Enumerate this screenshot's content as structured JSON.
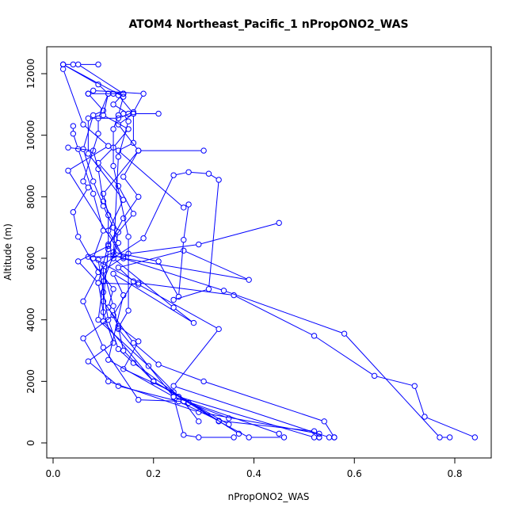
{
  "chart_data": {
    "type": "line",
    "title": "ATOM4 Northeast_Pacific_1 nPropONO2_WAS",
    "xlabel": "nPropONO2_WAS",
    "ylabel": "Altitude (m)",
    "xlim": [
      0,
      0.85
    ],
    "ylim": [
      0,
      12400
    ],
    "x_ticks": [
      0.0,
      0.2,
      0.4,
      0.6,
      0.8
    ],
    "x_tick_labels": [
      "0.0",
      "0.2",
      "0.4",
      "0.6",
      "0.8"
    ],
    "y_ticks": [
      0,
      2000,
      4000,
      6000,
      8000,
      10000,
      12000
    ],
    "y_tick_labels": [
      "0",
      "2000",
      "4000",
      "6000",
      "8000",
      "10000",
      "12000"
    ],
    "marker": "open-circle",
    "color": "#0000ff",
    "grid": false,
    "series": [
      {
        "name": "",
        "points": [
          [
            0.53,
            180
          ],
          [
            0.52,
            380
          ],
          [
            0.33,
            720
          ],
          [
            0.25,
            1350
          ],
          [
            0.13,
            1850
          ],
          [
            0.07,
            2650
          ],
          [
            0.12,
            3250
          ],
          [
            0.1,
            4250
          ],
          [
            0.09,
            5200
          ],
          [
            0.11,
            6450
          ],
          [
            0.16,
            7450
          ],
          [
            0.13,
            8350
          ],
          [
            0.09,
            9100
          ],
          [
            0.12,
            9600
          ],
          [
            0.15,
            10200
          ],
          [
            0.1,
            10650
          ],
          [
            0.11,
            11350
          ],
          [
            0.09,
            11650
          ],
          [
            0.02,
            12300
          ],
          [
            0.04,
            12300
          ]
        ]
      },
      {
        "name": "",
        "points": [
          [
            0.84,
            180
          ],
          [
            0.74,
            850
          ],
          [
            0.72,
            1850
          ],
          [
            0.64,
            2180
          ],
          [
            0.52,
            3480
          ],
          [
            0.36,
            4800
          ],
          [
            0.17,
            5200
          ],
          [
            0.08,
            6000
          ],
          [
            0.1,
            6900
          ],
          [
            0.08,
            8100
          ],
          [
            0.05,
            9550
          ],
          [
            0.04,
            10050
          ],
          [
            0.04,
            10300
          ]
        ]
      },
      {
        "name": "",
        "points": [
          [
            0.79,
            180
          ],
          [
            0.77,
            180
          ],
          [
            0.58,
            3550
          ],
          [
            0.34,
            4950
          ],
          [
            0.12,
            6100
          ],
          [
            0.13,
            6850
          ],
          [
            0.1,
            7850
          ],
          [
            0.09,
            8900
          ],
          [
            0.08,
            9500
          ],
          [
            0.03,
            9600
          ]
        ]
      },
      {
        "name": "",
        "points": [
          [
            0.56,
            180
          ],
          [
            0.54,
            700
          ],
          [
            0.3,
            2000
          ],
          [
            0.21,
            2550
          ],
          [
            0.16,
            3250
          ],
          [
            0.1,
            4600
          ],
          [
            0.11,
            6300
          ],
          [
            0.11,
            7400
          ],
          [
            0.1,
            8100
          ],
          [
            0.17,
            9500
          ],
          [
            0.3,
            9500
          ]
        ]
      },
      {
        "name": "",
        "points": [
          [
            0.46,
            180
          ],
          [
            0.39,
            180
          ],
          [
            0.33,
            700
          ],
          [
            0.2,
            2000
          ],
          [
            0.1,
            3950
          ],
          [
            0.1,
            5800
          ],
          [
            0.18,
            6650
          ],
          [
            0.24,
            8700
          ],
          [
            0.27,
            8800
          ],
          [
            0.31,
            8750
          ],
          [
            0.33,
            8550
          ],
          [
            0.31,
            5000
          ],
          [
            0.24,
            4650
          ]
        ]
      },
      {
        "name": "",
        "points": [
          [
            0.36,
            180
          ],
          [
            0.29,
            180
          ],
          [
            0.26,
            260
          ],
          [
            0.24,
            1500
          ],
          [
            0.13,
            3700
          ],
          [
            0.12,
            4450
          ],
          [
            0.1,
            5600
          ],
          [
            0.15,
            6150
          ],
          [
            0.29,
            6450
          ],
          [
            0.45,
            7150
          ]
        ]
      },
      {
        "name": "",
        "points": [
          [
            0.29,
            700
          ],
          [
            0.26,
            1350
          ],
          [
            0.17,
            1400
          ],
          [
            0.1,
            3100
          ],
          [
            0.06,
            4600
          ],
          [
            0.09,
            5550
          ],
          [
            0.05,
            6700
          ],
          [
            0.04,
            7500
          ],
          [
            0.07,
            8300
          ],
          [
            0.06,
            8500
          ],
          [
            0.09,
            10050
          ],
          [
            0.09,
            10550
          ],
          [
            0.11,
            11350
          ]
        ]
      },
      {
        "name": "",
        "points": [
          [
            0.56,
            180
          ],
          [
            0.55,
            180
          ],
          [
            0.24,
            1850
          ],
          [
            0.33,
            3700
          ],
          [
            0.17,
            5150
          ],
          [
            0.09,
            5200
          ],
          [
            0.05,
            5900
          ],
          [
            0.11,
            6400
          ],
          [
            0.14,
            7300
          ],
          [
            0.17,
            8000
          ],
          [
            0.14,
            8650
          ],
          [
            0.17,
            9500
          ],
          [
            0.13,
            10350
          ],
          [
            0.16,
            10700
          ],
          [
            0.21,
            10700
          ]
        ]
      },
      {
        "name": "",
        "points": [
          [
            0.53,
            180
          ],
          [
            0.52,
            180
          ],
          [
            0.25,
            1500
          ],
          [
            0.19,
            2500
          ],
          [
            0.09,
            4000
          ],
          [
            0.1,
            5250
          ],
          [
            0.13,
            6500
          ],
          [
            0.12,
            7000
          ],
          [
            0.1,
            7700
          ],
          [
            0.08,
            8500
          ],
          [
            0.06,
            9550
          ],
          [
            0.08,
            10650
          ],
          [
            0.1,
            10800
          ],
          [
            0.07,
            11350
          ],
          [
            0.14,
            11350
          ]
        ]
      },
      {
        "name": "",
        "points": [
          [
            0.35,
            800
          ],
          [
            0.27,
            1300
          ],
          [
            0.16,
            2600
          ],
          [
            0.13,
            3050
          ],
          [
            0.11,
            4000
          ],
          [
            0.1,
            4900
          ],
          [
            0.09,
            5950
          ],
          [
            0.12,
            6200
          ],
          [
            0.21,
            5900
          ],
          [
            0.25,
            4750
          ],
          [
            0.26,
            6600
          ],
          [
            0.27,
            7750
          ],
          [
            0.26,
            7650
          ],
          [
            0.13,
            9500
          ],
          [
            0.16,
            9750
          ],
          [
            0.16,
            10700
          ],
          [
            0.13,
            11300
          ],
          [
            0.14,
            11350
          ],
          [
            0.05,
            12300
          ],
          [
            0.09,
            12300
          ]
        ]
      },
      {
        "name": "",
        "points": [
          [
            0.53,
            300
          ],
          [
            0.29,
            1000
          ],
          [
            0.11,
            2000
          ],
          [
            0.06,
            3400
          ],
          [
            0.12,
            4150
          ],
          [
            0.16,
            5250
          ],
          [
            0.13,
            5700
          ],
          [
            0.26,
            6250
          ],
          [
            0.39,
            5300
          ],
          [
            0.14,
            6000
          ],
          [
            0.03,
            8850
          ],
          [
            0.11,
            9650
          ],
          [
            0.06,
            10350
          ],
          [
            0.02,
            12150
          ]
        ]
      },
      {
        "name": "",
        "points": [
          [
            0.45,
            300
          ],
          [
            0.24,
            1500
          ],
          [
            0.11,
            2700
          ],
          [
            0.14,
            4800
          ],
          [
            0.12,
            5500
          ],
          [
            0.28,
            3900
          ],
          [
            0.24,
            4400
          ],
          [
            0.12,
            6000
          ],
          [
            0.13,
            9300
          ],
          [
            0.15,
            10450
          ],
          [
            0.14,
            10700
          ],
          [
            0.15,
            10700
          ],
          [
            0.12,
            11000
          ],
          [
            0.14,
            11350
          ],
          [
            0.12,
            11350
          ]
        ]
      },
      {
        "name": "",
        "points": [
          [
            0.35,
            600
          ],
          [
            0.2,
            2000
          ],
          [
            0.14,
            3000
          ],
          [
            0.13,
            3750
          ],
          [
            0.15,
            4300
          ],
          [
            0.15,
            6700
          ],
          [
            0.12,
            9000
          ],
          [
            0.12,
            10200
          ],
          [
            0.13,
            10650
          ],
          [
            0.14,
            11250
          ],
          [
            0.02,
            12300
          ]
        ]
      },
      {
        "name": "",
        "points": [
          [
            0.37,
            300
          ],
          [
            0.24,
            1650
          ],
          [
            0.14,
            2400
          ],
          [
            0.17,
            3300
          ],
          [
            0.13,
            3800
          ],
          [
            0.11,
            4400
          ],
          [
            0.12,
            5000
          ],
          [
            0.07,
            6050
          ],
          [
            0.14,
            6050
          ],
          [
            0.11,
            6900
          ],
          [
            0.14,
            7900
          ],
          [
            0.07,
            9400
          ],
          [
            0.07,
            10550
          ],
          [
            0.13,
            10550
          ],
          [
            0.16,
            10750
          ],
          [
            0.18,
            11350
          ],
          [
            0.08,
            11450
          ],
          [
            0.07,
            11350
          ]
        ]
      }
    ]
  }
}
